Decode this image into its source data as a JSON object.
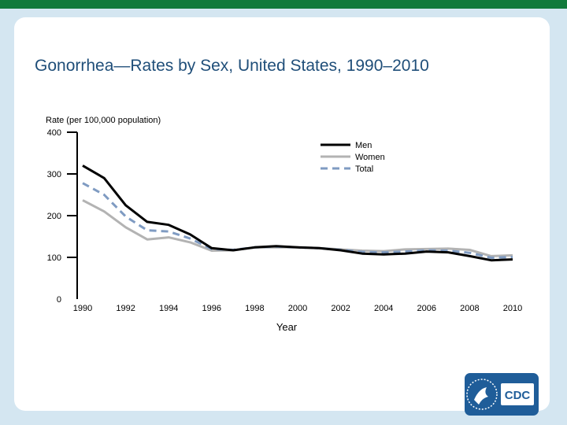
{
  "slide_title": "Gonorrhea—Rates by Sex, United States, 1990–2010",
  "logo": {
    "text": "CDC",
    "icon": "hhs-eagle-icon"
  },
  "colors": {
    "header_bar": "#117a3c",
    "background": "#d4e6f1",
    "title": "#1f4e79",
    "men": "#000000",
    "women": "#b3b3b3",
    "total": "#7f9bc2"
  },
  "chart_data": {
    "type": "line",
    "title": "",
    "ylabel": "Rate (per 100,000 population)",
    "xlabel": "Year",
    "ylim": [
      0,
      400
    ],
    "yticks": [
      0,
      100,
      200,
      300,
      400
    ],
    "xtick_labels": [
      "1990",
      "1992",
      "1994",
      "1996",
      "1998",
      "2000",
      "2002",
      "2004",
      "2006",
      "2008",
      "2010"
    ],
    "x": [
      1990,
      1991,
      1992,
      1993,
      1994,
      1995,
      1996,
      1997,
      1998,
      1999,
      2000,
      2001,
      2002,
      2003,
      2004,
      2005,
      2006,
      2007,
      2008,
      2009,
      2010
    ],
    "series": [
      {
        "name": "Men",
        "style": "solid",
        "values": [
          320,
          290,
          225,
          185,
          178,
          155,
          122,
          117,
          124,
          127,
          124,
          122,
          117,
          109,
          107,
          109,
          114,
          112,
          103,
          93,
          95
        ]
      },
      {
        "name": "Women",
        "style": "solid",
        "values": [
          237,
          210,
          172,
          143,
          148,
          136,
          116,
          117,
          124,
          124,
          124,
          122,
          119,
          116,
          115,
          119,
          120,
          121,
          118,
          103,
          105
        ]
      },
      {
        "name": "Total",
        "style": "dashed",
        "values": [
          278,
          250,
          198,
          165,
          162,
          145,
          120,
          118,
          124,
          126,
          124,
          122,
          118,
          113,
          112,
          114,
          117,
          116,
          111,
          99,
          101
        ]
      }
    ]
  }
}
